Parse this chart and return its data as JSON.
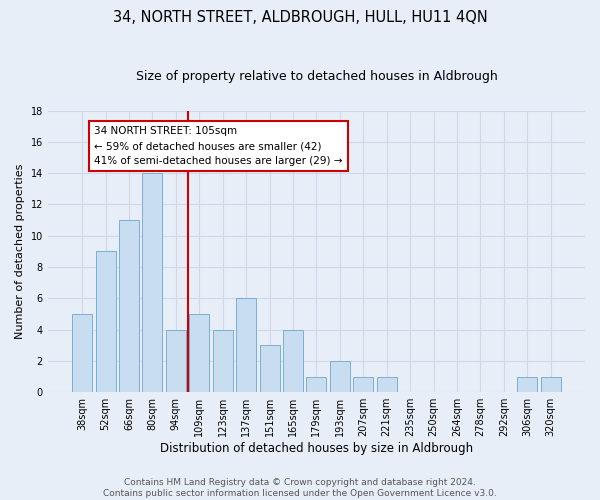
{
  "title": "34, NORTH STREET, ALDBROUGH, HULL, HU11 4QN",
  "subtitle": "Size of property relative to detached houses in Aldbrough",
  "xlabel": "Distribution of detached houses by size in Aldbrough",
  "ylabel": "Number of detached properties",
  "categories": [
    "38sqm",
    "52sqm",
    "66sqm",
    "80sqm",
    "94sqm",
    "109sqm",
    "123sqm",
    "137sqm",
    "151sqm",
    "165sqm",
    "179sqm",
    "193sqm",
    "207sqm",
    "221sqm",
    "235sqm",
    "250sqm",
    "264sqm",
    "278sqm",
    "292sqm",
    "306sqm",
    "320sqm"
  ],
  "values": [
    5,
    9,
    11,
    14,
    4,
    5,
    4,
    6,
    3,
    4,
    1,
    2,
    1,
    1,
    0,
    0,
    0,
    0,
    0,
    1,
    1
  ],
  "bar_color": "#c8ddf0",
  "bar_edge_color": "#7aafd4",
  "vline_x_index": 5,
  "vline_color": "#cc0000",
  "annotation_line1": "34 NORTH STREET: 105sqm",
  "annotation_line2": "← 59% of detached houses are smaller (42)",
  "annotation_line3": "41% of semi-detached houses are larger (29) →",
  "annotation_box_edgecolor": "#cc0000",
  "annotation_bg": "#ffffff",
  "ylim": [
    0,
    18
  ],
  "yticks": [
    0,
    2,
    4,
    6,
    8,
    10,
    12,
    14,
    16,
    18
  ],
  "grid_color": "#d0d8e8",
  "background_color": "#e8eef8",
  "plot_bg_color": "#e8eef8",
  "footer_text": "Contains HM Land Registry data © Crown copyright and database right 2024.\nContains public sector information licensed under the Open Government Licence v3.0.",
  "title_fontsize": 10.5,
  "subtitle_fontsize": 9,
  "ylabel_fontsize": 8,
  "xlabel_fontsize": 8.5,
  "tick_fontsize": 7,
  "footer_fontsize": 6.5
}
